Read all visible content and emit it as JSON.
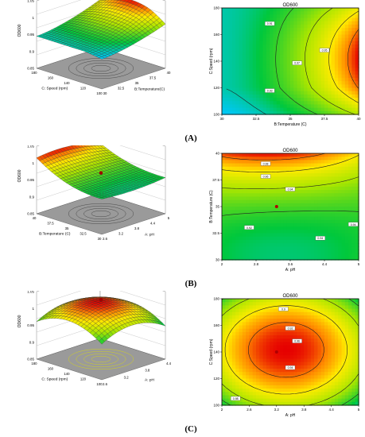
{
  "panels": [
    {
      "label": "(A)",
      "contour": {
        "title": "OD600",
        "xlabel": "B:Temperature (C)",
        "ylabel": "C:Speed (rpm)",
        "xticks": [
          "30",
          "32.5",
          "35",
          "37.5",
          "40"
        ],
        "yticks": [
          "100",
          "120",
          "140",
          "160",
          "180"
        ],
        "levels": [
          "0.91",
          "0.93",
          "0.95",
          "0.97"
        ],
        "design_point": false
      },
      "surface": {
        "zlabel": "OD600",
        "zticks": [
          "0.85",
          "0.9",
          "0.95",
          "1",
          "1.05"
        ],
        "xlabel": "C: Speed (rpm)",
        "xticks": [
          "180",
          "160",
          "140",
          "120",
          "100"
        ],
        "ylabel": "B:Temperature(C)",
        "yticks": [
          "30",
          "32.5",
          "35",
          "37.5",
          "40"
        ],
        "design_point": false
      }
    },
    {
      "label": "(B)",
      "contour": {
        "title": "OD600",
        "xlabel": "A: pH",
        "ylabel": "B:Temperature (C)",
        "xticks": [
          "2",
          "2.8",
          "3.6",
          "4.4",
          "5"
        ],
        "yticks": [
          "30",
          "32.5",
          "35",
          "37.5",
          "40"
        ],
        "levels": [
          "0.98",
          "0.96",
          "0.94",
          "0.92",
          "0.94",
          "0.94"
        ],
        "design_point": true
      },
      "surface": {
        "zlabel": "OD600",
        "zticks": [
          "0.85",
          "0.9",
          "0.95",
          "1",
          "1.05"
        ],
        "xlabel": "B:Temperature (C)",
        "xticks": [
          "40",
          "37.5",
          "35",
          "32.5",
          "30"
        ],
        "ylabel": "A: pH",
        "yticks": [
          "2.6",
          "3.2",
          "3.8",
          "4.4",
          "5"
        ],
        "design_point": true
      }
    },
    {
      "label": "(C)",
      "contour": {
        "title": "OD600",
        "xlabel": "A: pH",
        "ylabel": "C:Speed (rpm)",
        "xticks": [
          "2",
          "2.6",
          "3.2",
          "3.8",
          "4.4",
          "5"
        ],
        "yticks": [
          "100",
          "120",
          "140",
          "160",
          "180"
        ],
        "levels": [
          "0.9",
          "0.92",
          "0.94",
          "0.96",
          "0.98"
        ],
        "design_point": true
      },
      "surface": {
        "zlabel": "OD600",
        "zticks": [
          "0.85",
          "0.9",
          "0.95",
          "1",
          "1.05"
        ],
        "xlabel": "C: Speed (rpm)",
        "xticks": [
          "180",
          "160",
          "140",
          "120",
          "100"
        ],
        "ylabel": "A: pH",
        "yticks": [
          "2.6",
          "3.2",
          "3.8",
          "4.4"
        ],
        "design_point": true
      }
    }
  ],
  "colors": {
    "high": "#e00000",
    "mid": "#ffff00",
    "low": "#00c000",
    "min": "#0060ff",
    "floor": "#9a9a9a"
  },
  "chart_data": [
    {
      "type": "heatmap",
      "title": "OD600",
      "xlabel": "B:Temperature (C)",
      "ylabel": "C:Speed (rpm)",
      "xlim": [
        30,
        40
      ],
      "ylim": [
        100,
        180
      ],
      "contour_levels": [
        0.91,
        0.93,
        0.95,
        0.97
      ],
      "max_near": [
        40,
        140
      ]
    },
    {
      "type": "heatmap",
      "title": "OD600",
      "xlabel": "A: pH",
      "ylabel": "B:Temperature (C)",
      "xlim": [
        2,
        5
      ],
      "ylim": [
        30,
        40
      ],
      "contour_levels": [
        0.92,
        0.94,
        0.96,
        0.98
      ],
      "design_point": [
        3.2,
        35
      ],
      "max_near": [
        3.0,
        40
      ]
    },
    {
      "type": "heatmap",
      "title": "OD600",
      "xlabel": "A: pH",
      "ylabel": "C:Speed (rpm)",
      "xlim": [
        2,
        5
      ],
      "ylim": [
        100,
        180
      ],
      "contour_levels": [
        0.9,
        0.92,
        0.94,
        0.96,
        0.98
      ],
      "design_point": [
        3.2,
        140
      ],
      "max_near": [
        3.5,
        140
      ]
    }
  ]
}
